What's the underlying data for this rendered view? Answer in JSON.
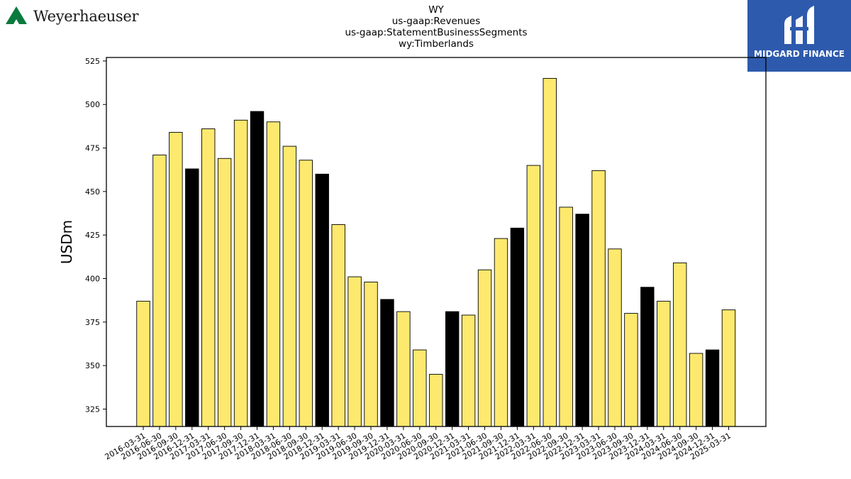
{
  "header": {
    "company_logo_text": "Weyerhaeuser",
    "brand_logo_text": "MIDGARD FINANCE",
    "colors": {
      "company_green": "#0a7a3e",
      "brand_blue": "#2e5aad"
    }
  },
  "chart_data": {
    "type": "bar",
    "title_lines": [
      "WY",
      "us-gaap:Revenues",
      "us-gaap:StatementBusinessSegments",
      "wy:Timberlands"
    ],
    "xlabel": "",
    "ylabel": "USDm",
    "ylim": [
      315,
      527
    ],
    "yticks": [
      325,
      350,
      375,
      400,
      425,
      450,
      475,
      500,
      525
    ],
    "grid": false,
    "colors": {
      "regular": "#fde96e",
      "year_end": "#000000",
      "edge": "#000000"
    },
    "categories": [
      "2016-03-31",
      "2016-06-30",
      "2016-09-30",
      "2016-12-31",
      "2017-03-31",
      "2017-06-30",
      "2017-09-30",
      "2017-12-31",
      "2018-03-31",
      "2018-06-30",
      "2018-09-30",
      "2018-12-31",
      "2019-03-31",
      "2019-06-30",
      "2019-09-30",
      "2019-12-31",
      "2020-03-31",
      "2020-06-30",
      "2020-09-30",
      "2020-12-31",
      "2021-03-31",
      "2021-06-30",
      "2021-09-30",
      "2021-12-31",
      "2022-03-31",
      "2022-06-30",
      "2022-09-30",
      "2022-12-31",
      "2023-03-31",
      "2023-06-30",
      "2023-09-30",
      "2023-12-31",
      "2024-03-31",
      "2024-06-30",
      "2024-09-30",
      "2024-12-31",
      "2025-03-31"
    ],
    "values": [
      387,
      471,
      484,
      463,
      486,
      469,
      491,
      496,
      490,
      476,
      468,
      460,
      431,
      401,
      398,
      388,
      381,
      359,
      345,
      381,
      379,
      405,
      423,
      429,
      465,
      515,
      441,
      437,
      462,
      417,
      380,
      395,
      387,
      409,
      357,
      359,
      382
    ]
  }
}
